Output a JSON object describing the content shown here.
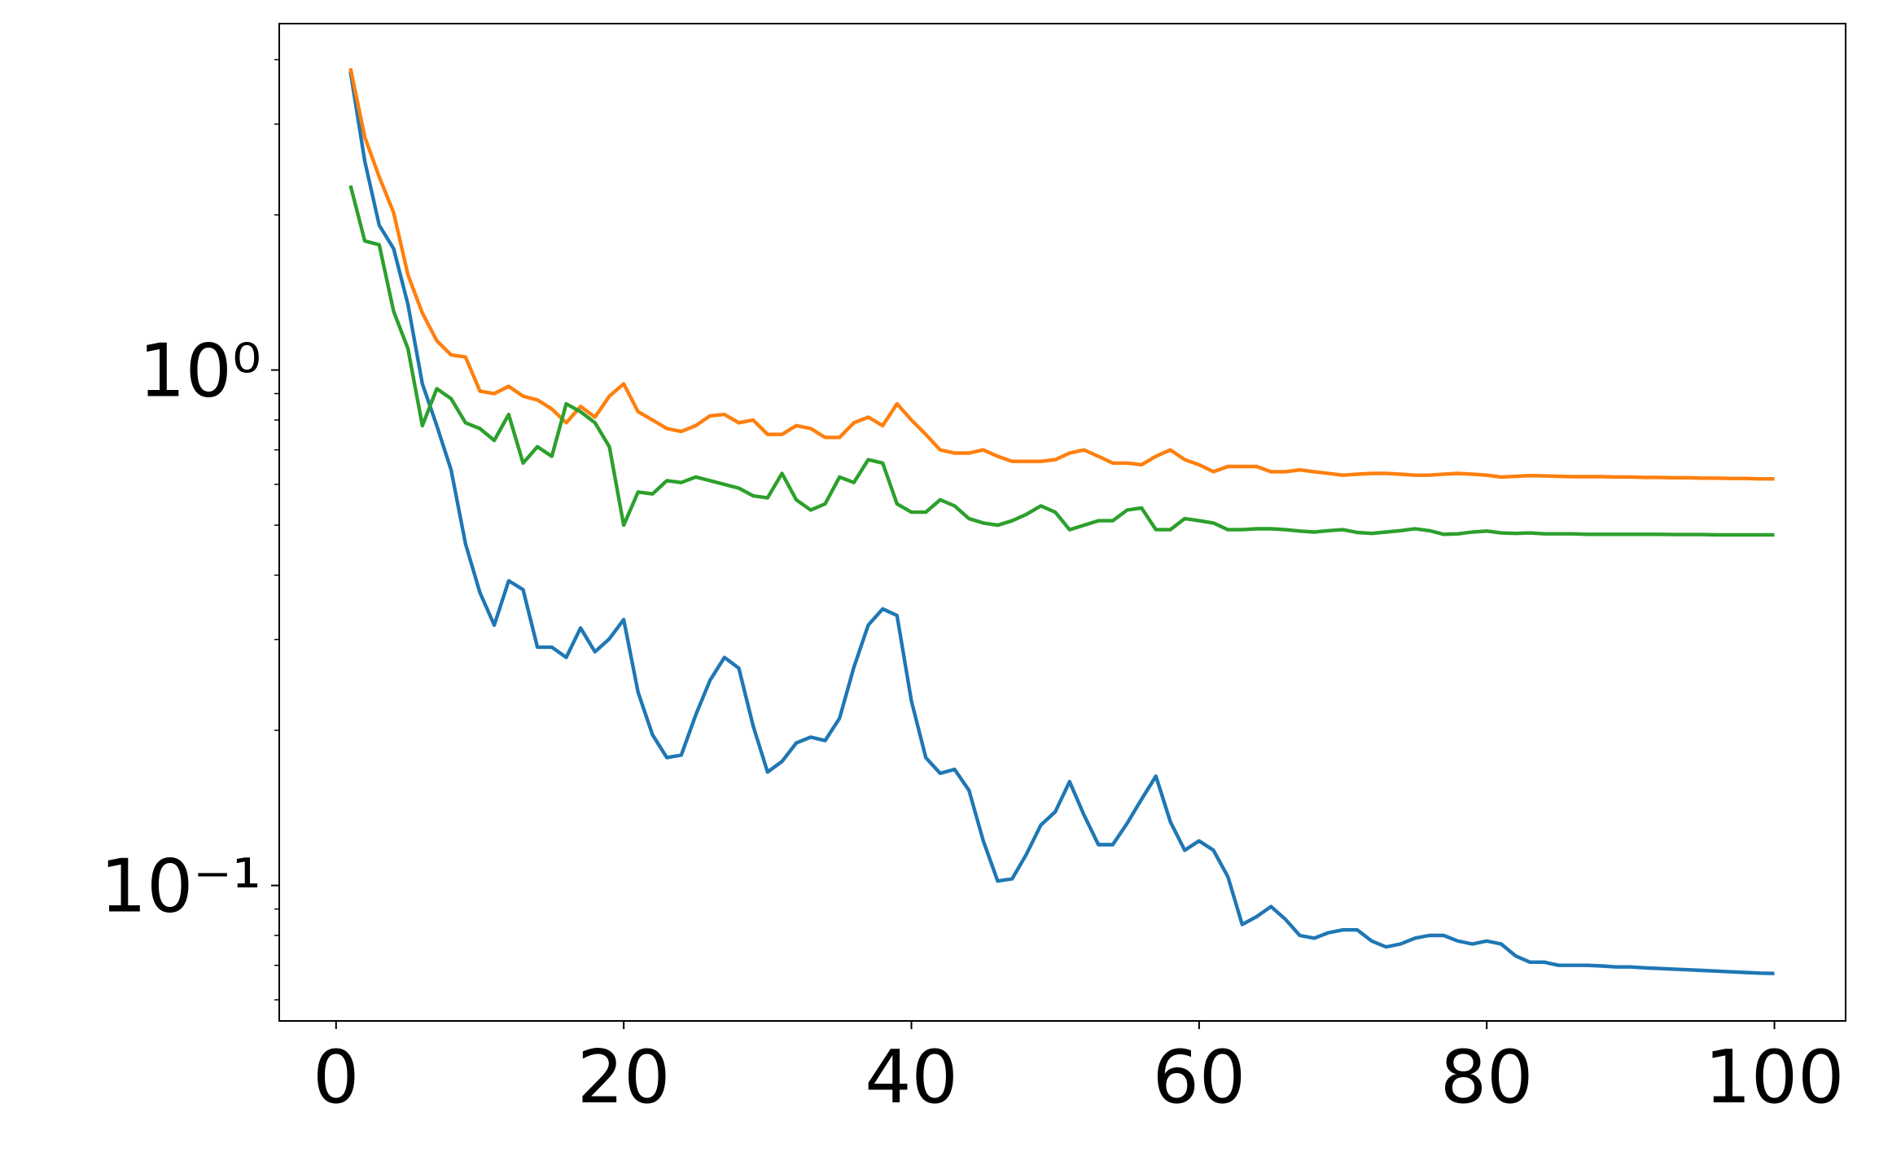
{
  "chart_data": {
    "type": "line",
    "x": [
      1,
      2,
      3,
      4,
      5,
      6,
      7,
      8,
      9,
      10,
      11,
      12,
      13,
      14,
      15,
      16,
      17,
      18,
      19,
      20,
      21,
      22,
      23,
      24,
      25,
      26,
      27,
      28,
      29,
      30,
      31,
      32,
      33,
      34,
      35,
      36,
      37,
      38,
      39,
      40,
      41,
      42,
      43,
      44,
      45,
      46,
      47,
      48,
      49,
      50,
      51,
      52,
      53,
      54,
      55,
      56,
      57,
      58,
      59,
      60,
      61,
      62,
      63,
      64,
      65,
      66,
      67,
      68,
      69,
      70,
      71,
      72,
      73,
      74,
      75,
      76,
      77,
      78,
      79,
      80,
      81,
      82,
      83,
      84,
      85,
      86,
      87,
      88,
      89,
      90,
      91,
      92,
      93,
      94,
      95,
      96,
      97,
      98,
      99,
      100
    ],
    "series": [
      {
        "color": "#1f77b4",
        "values": [
          3.79,
          2.54,
          1.91,
          1.72,
          1.34,
          0.94,
          0.78,
          0.64,
          0.46,
          0.37,
          0.32,
          0.39,
          0.375,
          0.29,
          0.29,
          0.277,
          0.316,
          0.284,
          0.301,
          0.328,
          0.237,
          0.196,
          0.177,
          0.179,
          0.214,
          0.25,
          0.277,
          0.264,
          0.204,
          0.166,
          0.174,
          0.189,
          0.194,
          0.191,
          0.211,
          0.265,
          0.32,
          0.344,
          0.334,
          0.228,
          0.177,
          0.165,
          0.168,
          0.153,
          0.122,
          0.102,
          0.103,
          0.115,
          0.131,
          0.139,
          0.159,
          0.137,
          0.12,
          0.12,
          0.132,
          0.147,
          0.163,
          0.133,
          0.117,
          0.122,
          0.117,
          0.104,
          0.084,
          0.087,
          0.091,
          0.086,
          0.08,
          0.079,
          0.081,
          0.082,
          0.082,
          0.078,
          0.076,
          0.077,
          0.079,
          0.08,
          0.08,
          0.078,
          0.077,
          0.078,
          0.077,
          0.073,
          0.071,
          0.071,
          0.07,
          0.07,
          0.07,
          0.0698,
          0.0695,
          0.0695,
          0.0692,
          0.069,
          0.0688,
          0.0686,
          0.0684,
          0.0682,
          0.068,
          0.0678,
          0.0676,
          0.0675
        ]
      },
      {
        "color": "#ff7f0e",
        "values": [
          3.85,
          2.83,
          2.37,
          2.02,
          1.53,
          1.29,
          1.14,
          1.07,
          1.06,
          0.91,
          0.9,
          0.93,
          0.89,
          0.875,
          0.84,
          0.79,
          0.85,
          0.81,
          0.89,
          0.94,
          0.83,
          0.8,
          0.77,
          0.76,
          0.78,
          0.815,
          0.82,
          0.79,
          0.8,
          0.75,
          0.75,
          0.78,
          0.77,
          0.74,
          0.74,
          0.79,
          0.81,
          0.78,
          0.86,
          0.8,
          0.75,
          0.7,
          0.69,
          0.69,
          0.7,
          0.68,
          0.665,
          0.665,
          0.665,
          0.67,
          0.69,
          0.7,
          0.68,
          0.66,
          0.66,
          0.655,
          0.68,
          0.7,
          0.67,
          0.655,
          0.635,
          0.65,
          0.65,
          0.65,
          0.635,
          0.635,
          0.64,
          0.635,
          0.63,
          0.625,
          0.628,
          0.63,
          0.63,
          0.628,
          0.625,
          0.625,
          0.628,
          0.63,
          0.628,
          0.625,
          0.62,
          0.622,
          0.624,
          0.623,
          0.622,
          0.621,
          0.621,
          0.621,
          0.62,
          0.62,
          0.619,
          0.619,
          0.618,
          0.618,
          0.617,
          0.617,
          0.616,
          0.616,
          0.615,
          0.615
        ]
      },
      {
        "color": "#2ca02c",
        "values": [
          2.28,
          1.78,
          1.75,
          1.3,
          1.1,
          0.78,
          0.92,
          0.88,
          0.79,
          0.77,
          0.73,
          0.82,
          0.66,
          0.71,
          0.68,
          0.86,
          0.83,
          0.79,
          0.71,
          0.5,
          0.58,
          0.575,
          0.61,
          0.605,
          0.62,
          0.61,
          0.6,
          0.59,
          0.57,
          0.565,
          0.63,
          0.56,
          0.535,
          0.55,
          0.62,
          0.605,
          0.67,
          0.66,
          0.55,
          0.53,
          0.53,
          0.56,
          0.545,
          0.515,
          0.505,
          0.5,
          0.51,
          0.525,
          0.545,
          0.53,
          0.49,
          0.5,
          0.51,
          0.51,
          0.535,
          0.54,
          0.49,
          0.49,
          0.515,
          0.51,
          0.505,
          0.49,
          0.49,
          0.492,
          0.492,
          0.49,
          0.487,
          0.485,
          0.488,
          0.49,
          0.484,
          0.482,
          0.485,
          0.488,
          0.492,
          0.488,
          0.48,
          0.481,
          0.485,
          0.487,
          0.483,
          0.482,
          0.483,
          0.481,
          0.481,
          0.481,
          0.48,
          0.48,
          0.48,
          0.48,
          0.48,
          0.48,
          0.4795,
          0.4795,
          0.4795,
          0.479,
          0.479,
          0.479,
          0.479,
          0.479
        ]
      }
    ],
    "xlim": [
      -3.95,
      104.95
    ],
    "xticks": [
      0,
      20,
      40,
      60,
      80,
      100
    ],
    "ylim": [
      0.0546,
      4.7
    ],
    "log_y": true,
    "yticks": [
      {
        "value": 0.1,
        "label": "10⁻¹"
      },
      {
        "value": 1,
        "label": "10⁰"
      }
    ],
    "yminor_ticks": [
      0.06,
      0.07,
      0.08,
      0.09,
      0.2,
      0.3,
      0.4,
      0.5,
      0.6,
      0.7,
      0.8,
      0.9,
      2,
      3,
      4
    ]
  }
}
